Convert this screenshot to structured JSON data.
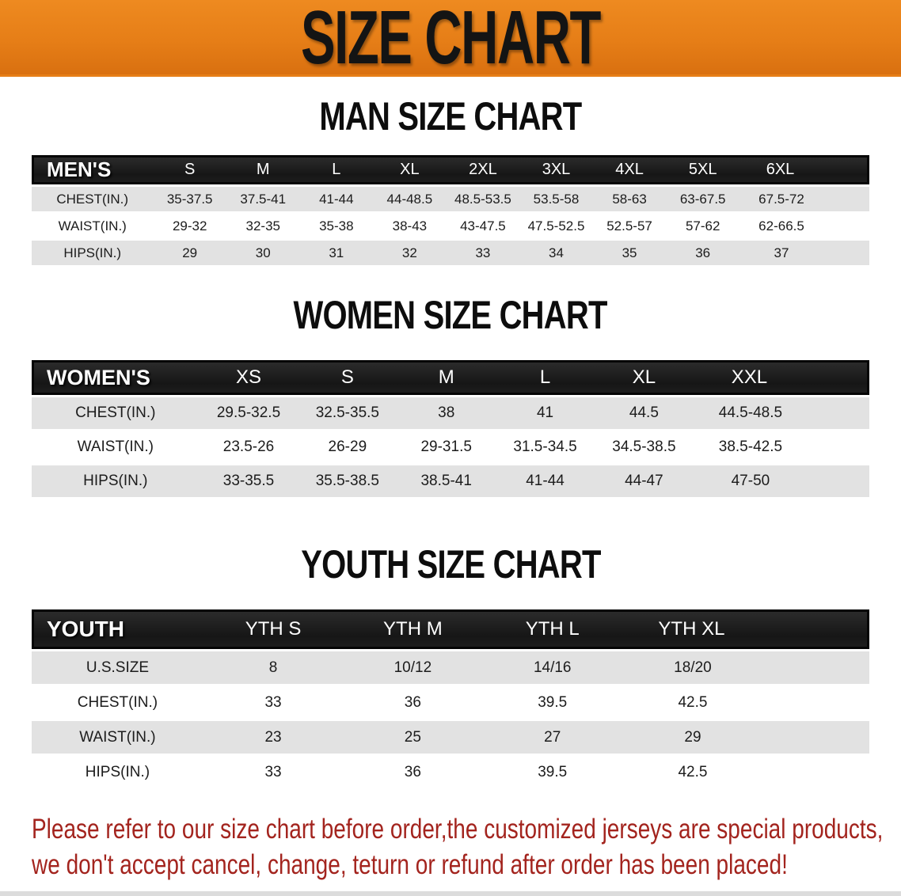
{
  "banner": {
    "title": "SIZE CHART",
    "bg_color": "#E67E17",
    "text_color": "#141414"
  },
  "sections": [
    {
      "heading": "MAN SIZE CHART",
      "table": {
        "label": "MEN'S",
        "columns": [
          "S",
          "M",
          "L",
          "XL",
          "2XL",
          "3XL",
          "4XL",
          "5XL",
          "6XL"
        ],
        "rows": [
          {
            "label": "CHEST(IN.)",
            "values": [
              "35-37.5",
              "37.5-41",
              "41-44",
              "44-48.5",
              "48.5-53.5",
              "53.5-58",
              "58-63",
              "63-67.5",
              "67.5-72"
            ]
          },
          {
            "label": "WAIST(IN.)",
            "values": [
              "29-32",
              "32-35",
              "35-38",
              "38-43",
              "43-47.5",
              "47.5-52.5",
              "52.5-57",
              "57-62",
              "62-66.5"
            ]
          },
          {
            "label": "HIPS(IN.)",
            "values": [
              "29",
              "30",
              "31",
              "32",
              "33",
              "34",
              "35",
              "36",
              "37"
            ]
          }
        ]
      }
    },
    {
      "heading": "WOMEN SIZE CHART",
      "table": {
        "label": "WOMEN'S",
        "columns": [
          "XS",
          "S",
          "M",
          "L",
          "XL",
          "XXL"
        ],
        "rows": [
          {
            "label": "CHEST(IN.)",
            "values": [
              "29.5-32.5",
              "32.5-35.5",
              "38",
              "41",
              "44.5",
              "44.5-48.5"
            ]
          },
          {
            "label": "WAIST(IN.)",
            "values": [
              "23.5-26",
              "26-29",
              "29-31.5",
              "31.5-34.5",
              "34.5-38.5",
              "38.5-42.5"
            ]
          },
          {
            "label": "HIPS(IN.)",
            "values": [
              "33-35.5",
              "35.5-38.5",
              "38.5-41",
              "41-44",
              "44-47",
              "47-50"
            ]
          }
        ]
      }
    },
    {
      "heading": "YOUTH SIZE CHART",
      "table": {
        "label": "YOUTH",
        "columns": [
          "YTH S",
          "YTH M",
          "YTH L",
          "YTH XL"
        ],
        "rows": [
          {
            "label": "U.S.SIZE",
            "values": [
              "8",
              "10/12",
              "14/16",
              "18/20"
            ]
          },
          {
            "label": "CHEST(IN.)",
            "values": [
              "33",
              "36",
              "39.5",
              "42.5"
            ]
          },
          {
            "label": "WAIST(IN.)",
            "values": [
              "23",
              "25",
              "27",
              "29"
            ]
          },
          {
            "label": "HIPS(IN.)",
            "values": [
              "33",
              "36",
              "39.5",
              "42.5"
            ]
          }
        ]
      }
    }
  ],
  "disclaimer": {
    "line1": "Please refer to our size chart before order,the customized jerseys are special products,",
    "line2": "we don't accept cancel, change, teturn or refund after order has been placed!",
    "color": "#A3241E"
  },
  "colors": {
    "header_bar": "#161616",
    "row_stripe": "#E2E2E2"
  }
}
